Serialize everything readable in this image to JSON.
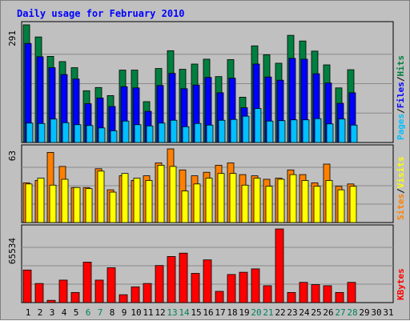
{
  "title": "Daily usage for February 2010",
  "colors": {
    "title": "#0000ff",
    "pages": "#00c0ff",
    "files": "#0000ff",
    "hits": "#008040",
    "visits": "#ffff00",
    "sites": "#ff8000",
    "kbytes": "#ff0000",
    "weekend_day": "#00805c",
    "weekday": "#000000",
    "plot_bg": "#c0c0c0",
    "gridline": "#8a8a8a"
  },
  "chart_data": [
    {
      "type": "bar",
      "title": "Daily usage for February 2010",
      "ymax_label": "291",
      "ylim": [
        0,
        291
      ],
      "grid": true,
      "legend": [
        {
          "key": "pages",
          "label": "Pages"
        },
        {
          "key": "sep1",
          "label": "/"
        },
        {
          "key": "files",
          "label": "Files"
        },
        {
          "key": "sep2",
          "label": "/"
        },
        {
          "key": "hits",
          "label": "Hits"
        }
      ],
      "series": [
        {
          "key": "hits",
          "values": [
            291,
            261,
            213,
            200,
            185,
            128,
            136,
            116,
            179,
            179,
            101,
            183,
            227,
            181,
            194,
            206,
            163,
            205,
            112,
            239,
            217,
            196,
            265,
            251,
            226,
            192,
            135,
            180,
            0
          ]
        },
        {
          "key": "files",
          "values": [
            245,
            212,
            185,
            168,
            157,
            96,
            110,
            89,
            138,
            135,
            77,
            141,
            171,
            133,
            142,
            161,
            123,
            159,
            86,
            194,
            162,
            154,
            208,
            206,
            170,
            147,
            97,
            123,
            0
          ]
        },
        {
          "key": "pages",
          "values": [
            48,
            47,
            58,
            49,
            44,
            42,
            36,
            29,
            53,
            44,
            41,
            48,
            55,
            39,
            47,
            43,
            55,
            57,
            65,
            84,
            53,
            54,
            56,
            56,
            59,
            46,
            58,
            43,
            0
          ]
        }
      ]
    },
    {
      "type": "bar",
      "ymax_label": "63",
      "ylim": [
        0,
        63
      ],
      "grid": true,
      "legend": [
        {
          "key": "sites",
          "label": "Sites"
        },
        {
          "key": "sep1",
          "label": "/"
        },
        {
          "key": "visits",
          "label": "Visits"
        }
      ],
      "series": [
        {
          "key": "sites",
          "values": [
            34,
            36,
            60,
            48,
            30,
            30,
            46,
            28,
            40,
            36,
            40,
            51,
            63,
            45,
            40,
            43,
            49,
            51,
            41,
            40,
            37,
            38,
            45,
            41,
            34,
            50,
            31,
            33,
            0
          ]
        },
        {
          "key": "visits",
          "values": [
            33,
            38,
            32,
            37,
            30,
            29,
            44,
            26,
            42,
            38,
            36,
            49,
            48,
            27,
            33,
            38,
            42,
            42,
            32,
            38,
            31,
            37,
            41,
            36,
            31,
            36,
            28,
            31,
            0
          ]
        }
      ]
    },
    {
      "type": "bar",
      "ymax_label": "65534",
      "ylim": [
        0,
        65534
      ],
      "grid": true,
      "legend": [
        {
          "key": "kbytes",
          "label": "KBytes"
        }
      ],
      "series": [
        {
          "key": "kbytes",
          "values": [
            29000,
            17000,
            2000,
            20000,
            9000,
            36000,
            20000,
            31000,
            7000,
            14000,
            17000,
            33000,
            41000,
            44000,
            26000,
            38000,
            10000,
            25000,
            27000,
            30000,
            15000,
            65534,
            9000,
            18000,
            16000,
            15000,
            9000,
            18000,
            0
          ]
        }
      ]
    }
  ],
  "days": [
    "1",
    "2",
    "3",
    "4",
    "5",
    "6",
    "7",
    "8",
    "9",
    "10",
    "11",
    "12",
    "13",
    "14",
    "15",
    "16",
    "17",
    "18",
    "19",
    "20",
    "21",
    "22",
    "23",
    "24",
    "25",
    "26",
    "27",
    "28",
    "29",
    "30",
    "31"
  ],
  "weekend_days": [
    "6",
    "7",
    "13",
    "14",
    "20",
    "21",
    "27",
    "28"
  ]
}
